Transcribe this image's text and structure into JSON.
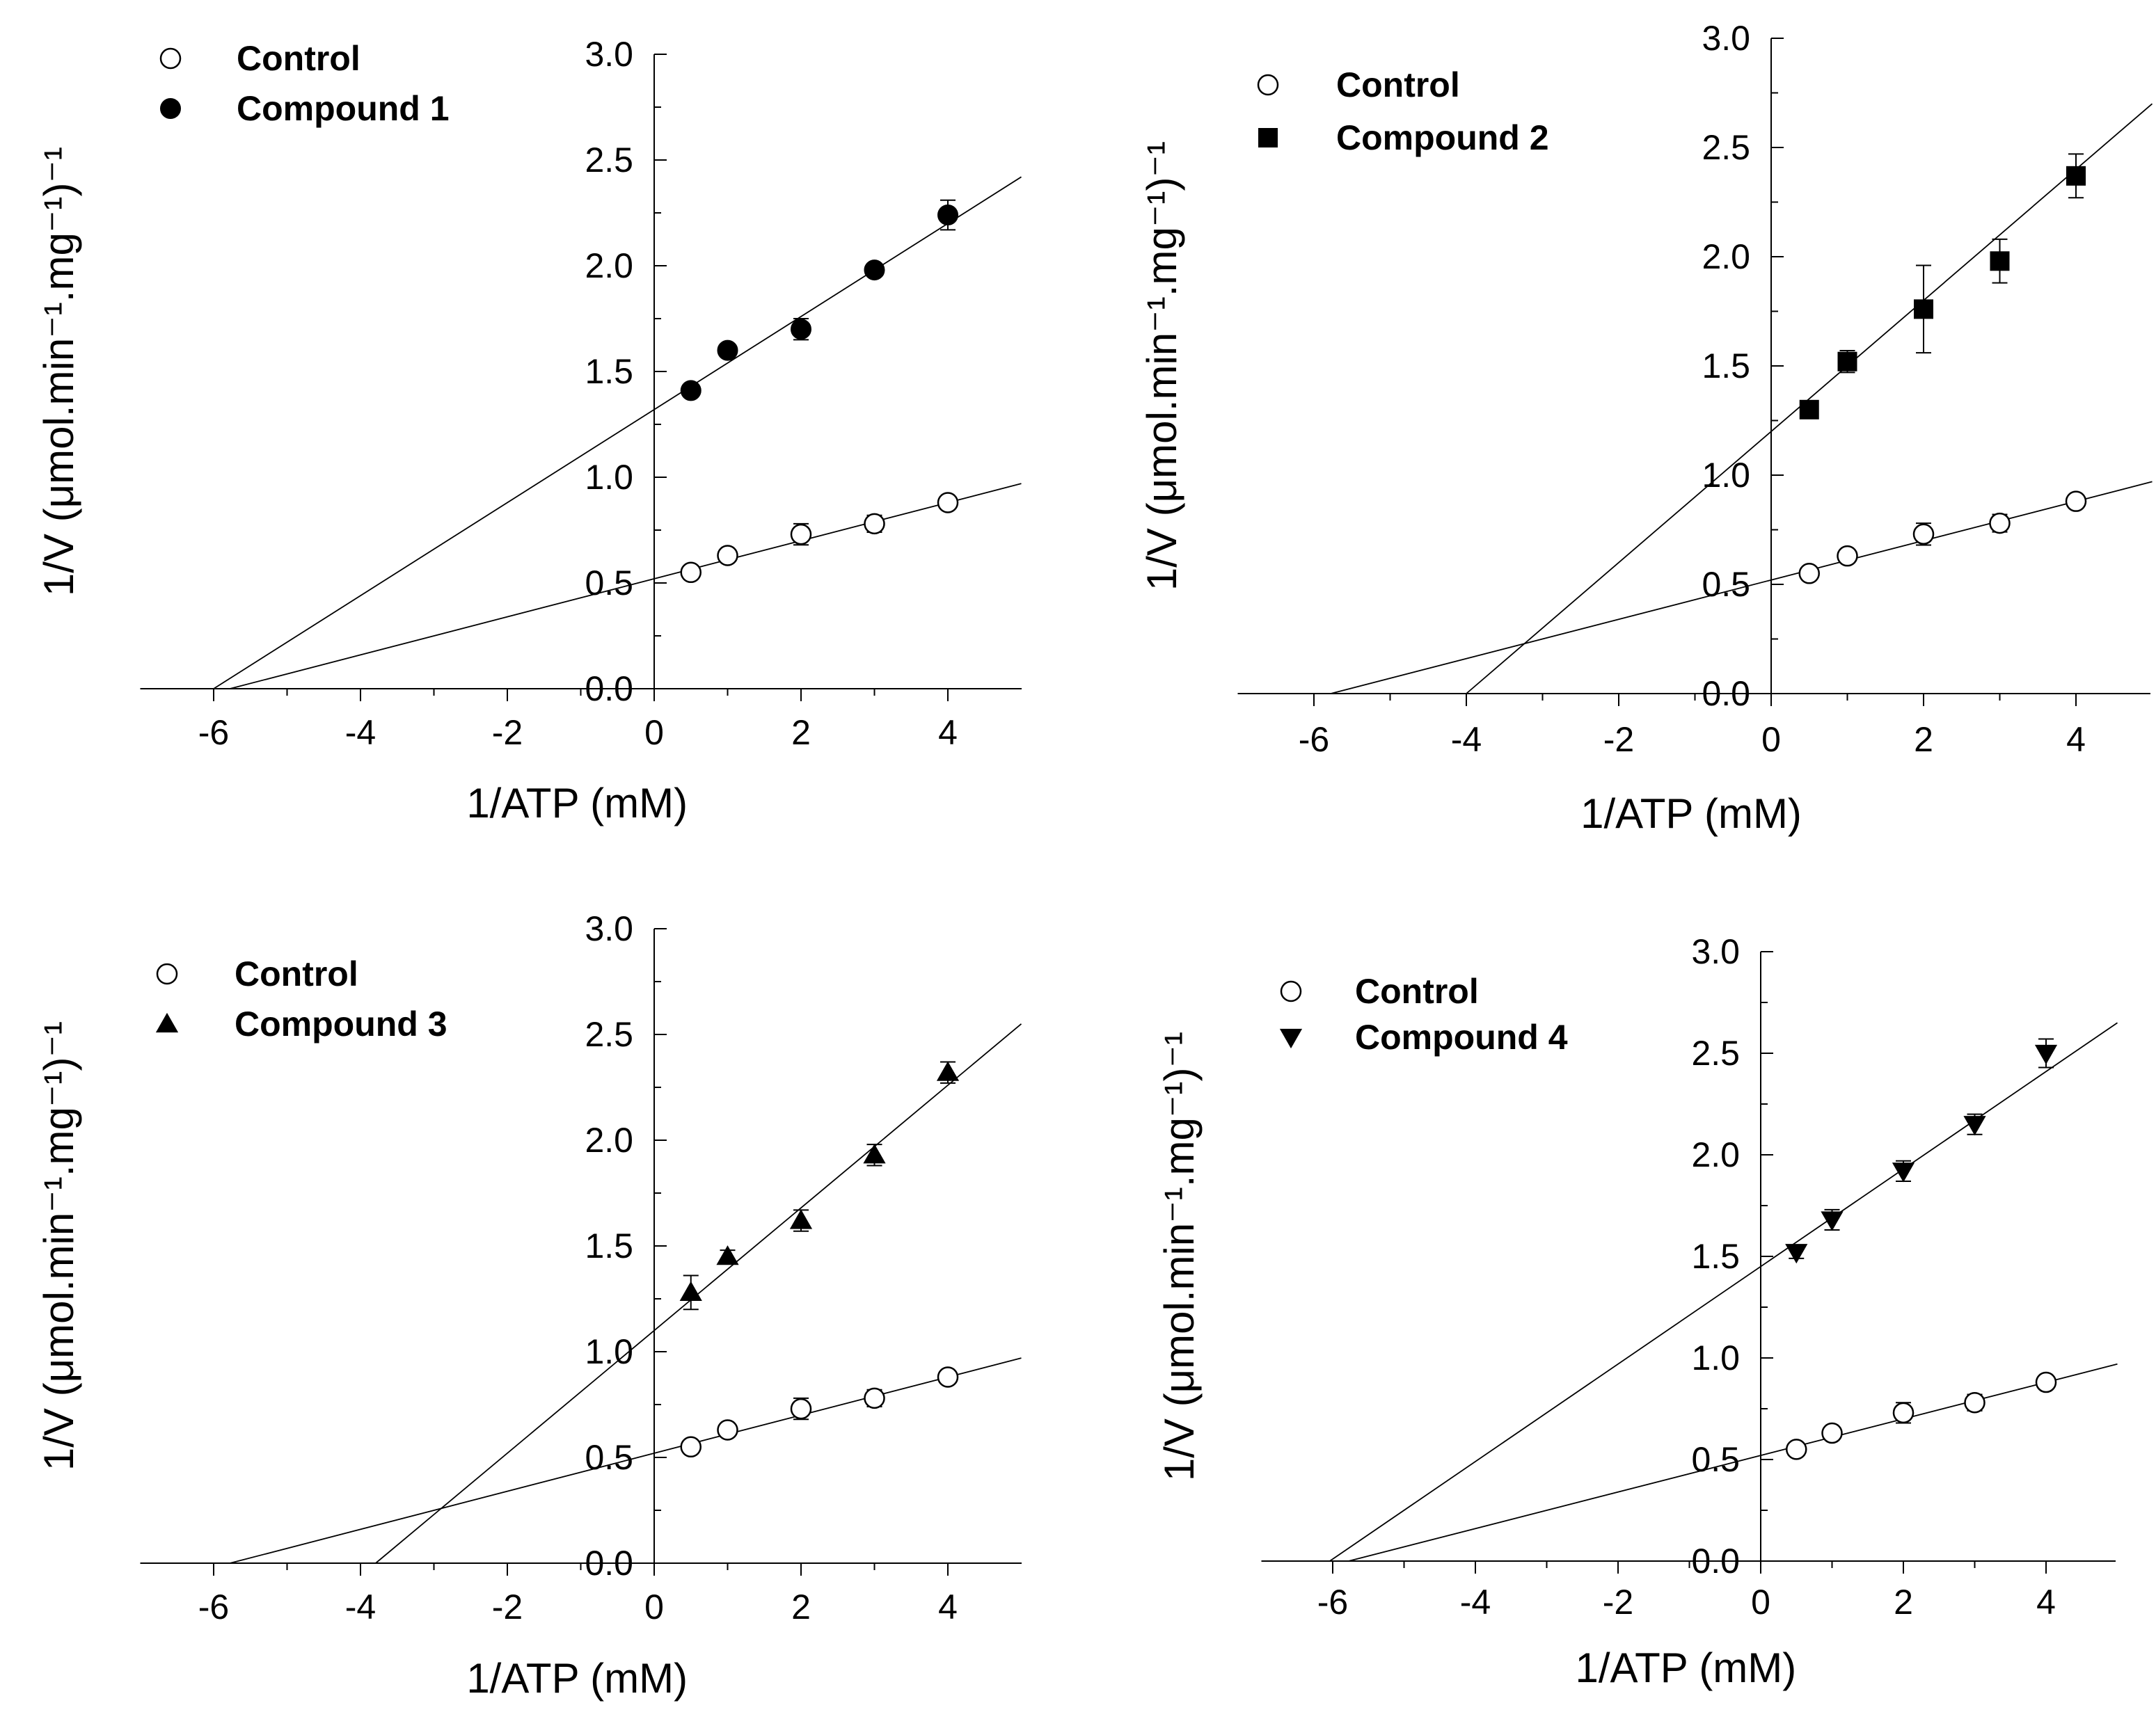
{
  "chart_data": [
    {
      "type": "scatter",
      "xlabel": "1/ATP (mM)",
      "ylabel": "1/V (μmol.min⁻¹.mg⁻¹)⁻¹",
      "xlim": [
        -7,
        5
      ],
      "ylim": [
        0,
        3
      ],
      "x_ticks": [
        "-6",
        "-4",
        "-2",
        "0",
        "2",
        "4"
      ],
      "y_ticks": [
        "0.0",
        "0.5",
        "1.0",
        "1.5",
        "2.0",
        "2.5",
        "3.0"
      ],
      "legend_position": "top-left",
      "grid": false,
      "series": [
        {
          "name": "Control",
          "marker": "circle-open",
          "x": [
            0.5,
            1,
            2,
            3,
            4
          ],
          "y": [
            0.55,
            0.63,
            0.73,
            0.78,
            0.88
          ],
          "err": [
            0.02,
            0.03,
            0.05,
            0.04,
            0.02
          ],
          "fit": {
            "slope": 0.09,
            "intercept": 0.52
          }
        },
        {
          "name": "Compound 1",
          "marker": "circle-filled",
          "x": [
            0.5,
            1,
            2,
            3,
            4
          ],
          "y": [
            1.41,
            1.6,
            1.7,
            1.98,
            2.24
          ],
          "err": [
            0.03,
            0.03,
            0.05,
            0.03,
            0.07
          ],
          "fit": {
            "slope": 0.22,
            "intercept": 1.32
          }
        }
      ]
    },
    {
      "type": "scatter",
      "xlabel": "1/ATP (mM)",
      "ylabel": "1/V (μmol.min⁻¹.mg⁻¹)⁻¹",
      "xlim": [
        -7,
        5
      ],
      "ylim": [
        0,
        3
      ],
      "x_ticks": [
        "-6",
        "-4",
        "-2",
        "0",
        "2",
        "4"
      ],
      "y_ticks": [
        "0.0",
        "0.5",
        "1.0",
        "1.5",
        "2.0",
        "2.5",
        "3.0"
      ],
      "legend_position": "top-left",
      "grid": false,
      "series": [
        {
          "name": "Control",
          "marker": "circle-open",
          "x": [
            0.5,
            1,
            2,
            3,
            4
          ],
          "y": [
            0.55,
            0.63,
            0.73,
            0.78,
            0.88
          ],
          "err": [
            0.02,
            0.03,
            0.05,
            0.04,
            0.02
          ],
          "fit": {
            "slope": 0.09,
            "intercept": 0.52
          }
        },
        {
          "name": "Compound 2",
          "marker": "square-filled",
          "x": [
            0.5,
            1,
            2,
            3,
            4
          ],
          "y": [
            1.3,
            1.52,
            1.76,
            1.98,
            2.37
          ],
          "err": [
            0.03,
            0.05,
            0.2,
            0.1,
            0.1
          ],
          "fit": {
            "slope": 0.3,
            "intercept": 1.2
          }
        }
      ]
    },
    {
      "type": "scatter",
      "xlabel": "1/ATP (mM)",
      "ylabel": "1/V (μmol.min⁻¹.mg⁻¹)⁻¹",
      "xlim": [
        -7,
        5
      ],
      "ylim": [
        0,
        3
      ],
      "x_ticks": [
        "-6",
        "-4",
        "-2",
        "0",
        "2",
        "4"
      ],
      "y_ticks": [
        "0.0",
        "0.5",
        "1.0",
        "1.5",
        "2.0",
        "2.5",
        "3.0"
      ],
      "legend_position": "top-left",
      "grid": false,
      "series": [
        {
          "name": "Control",
          "marker": "circle-open",
          "x": [
            0.5,
            1,
            2,
            3,
            4
          ],
          "y": [
            0.55,
            0.63,
            0.73,
            0.78,
            0.88
          ],
          "err": [
            0.02,
            0.03,
            0.05,
            0.04,
            0.02
          ],
          "fit": {
            "slope": 0.09,
            "intercept": 0.52
          }
        },
        {
          "name": "Compound 3",
          "marker": "triangle-up-filled",
          "x": [
            0.5,
            1,
            2,
            3,
            4
          ],
          "y": [
            1.28,
            1.45,
            1.62,
            1.93,
            2.32
          ],
          "err": [
            0.08,
            0.03,
            0.05,
            0.05,
            0.05
          ],
          "fit": {
            "slope": 0.29,
            "intercept": 1.1
          }
        }
      ]
    },
    {
      "type": "scatter",
      "xlabel": "1/ATP (mM)",
      "ylabel": "1/V (μmol.min⁻¹.mg⁻¹)⁻¹",
      "xlim": [
        -7,
        5
      ],
      "ylim": [
        0,
        3
      ],
      "x_ticks": [
        "-6",
        "-4",
        "-2",
        "0",
        "2",
        "4"
      ],
      "y_ticks": [
        "0.0",
        "0.5",
        "1.0",
        "1.5",
        "2.0",
        "2.5",
        "3.0"
      ],
      "legend_position": "top-left",
      "grid": false,
      "series": [
        {
          "name": "Control",
          "marker": "circle-open",
          "x": [
            0.5,
            1,
            2,
            3,
            4
          ],
          "y": [
            0.55,
            0.63,
            0.73,
            0.78,
            0.88
          ],
          "err": [
            0.02,
            0.03,
            0.05,
            0.04,
            0.02
          ],
          "fit": {
            "slope": 0.09,
            "intercept": 0.52
          }
        },
        {
          "name": "Compound 4",
          "marker": "triangle-down-filled",
          "x": [
            0.5,
            1,
            2,
            3,
            4
          ],
          "y": [
            1.52,
            1.68,
            1.92,
            2.15,
            2.5
          ],
          "err": [
            0.03,
            0.05,
            0.05,
            0.05,
            0.07
          ],
          "fit": {
            "slope": 0.24,
            "intercept": 1.45
          }
        }
      ]
    }
  ]
}
